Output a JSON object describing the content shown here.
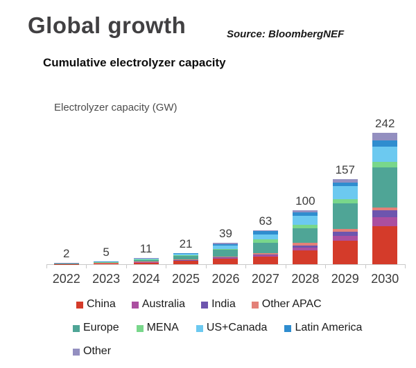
{
  "header": {
    "title": "Global growth",
    "source": "Source: BloombergNEF"
  },
  "chart_title": "Cumulative electrolyzer capacity",
  "chart_data": {
    "type": "bar",
    "stacked": true,
    "title": "Cumulative electrolyzer capacity",
    "axis_title": "Electrolyzer capacity (GW)",
    "xlabel": "",
    "ylabel": "Electrolyzer capacity (GW)",
    "ylim": [
      0,
      250
    ],
    "grid": false,
    "legend_position": "bottom",
    "categories": [
      "2022",
      "2023",
      "2024",
      "2025",
      "2026",
      "2027",
      "2028",
      "2029",
      "2030"
    ],
    "totals": [
      2,
      5,
      11,
      21,
      39,
      63,
      100,
      157,
      242
    ],
    "series": [
      {
        "name": "China",
        "color": "#d43b2a",
        "values": [
          0.2,
          1.0,
          3.0,
          6.0,
          10.0,
          14.0,
          25.0,
          43.0,
          70.0
        ]
      },
      {
        "name": "Australia",
        "color": "#ab4fa0",
        "values": [
          0.1,
          0.4,
          0.5,
          1.0,
          1.5,
          2.0,
          5.0,
          9.0,
          17.0
        ]
      },
      {
        "name": "India",
        "color": "#6d55ae",
        "values": [
          0.0,
          0.3,
          0.3,
          0.5,
          1.0,
          2.0,
          5.0,
          8.0,
          12.0
        ]
      },
      {
        "name": "Other APAC",
        "color": "#e38078",
        "values": [
          0.1,
          0.3,
          0.7,
          1.0,
          2.0,
          3.0,
          4.0,
          5.0,
          6.0
        ]
      },
      {
        "name": "Europe",
        "color": "#4fa596",
        "values": [
          0.8,
          1.1,
          3.5,
          7.0,
          12.0,
          19.0,
          27.0,
          47.0,
          74.0
        ]
      },
      {
        "name": "MENA",
        "color": "#79d78b",
        "values": [
          0.0,
          0.2,
          0.5,
          1.0,
          2.0,
          6.0,
          7.0,
          8.0,
          10.0
        ]
      },
      {
        "name": "US+Canada",
        "color": "#6cc9f0",
        "values": [
          0.4,
          0.7,
          1.2,
          2.5,
          6.0,
          9.0,
          16.0,
          24.0,
          27.0
        ]
      },
      {
        "name": "Latin America",
        "color": "#2f8dcf",
        "values": [
          0.3,
          0.8,
          1.0,
          1.5,
          3.0,
          6.0,
          6.0,
          7.0,
          12.0
        ]
      },
      {
        "name": "Other",
        "color": "#938fc0",
        "values": [
          0.1,
          0.2,
          0.3,
          0.5,
          1.5,
          2.0,
          5.0,
          6.0,
          14.0
        ]
      }
    ]
  },
  "legend": {
    "rows": [
      [
        "China",
        "Australia",
        "India",
        "Other APAC"
      ],
      [
        "Europe",
        "MENA",
        "US+Canada",
        "Latin America"
      ],
      [
        "Other"
      ]
    ]
  },
  "colors": {
    "axis_line": "#c9c9c9",
    "title_text": "#414042",
    "body_text": "#1a1a1a"
  }
}
